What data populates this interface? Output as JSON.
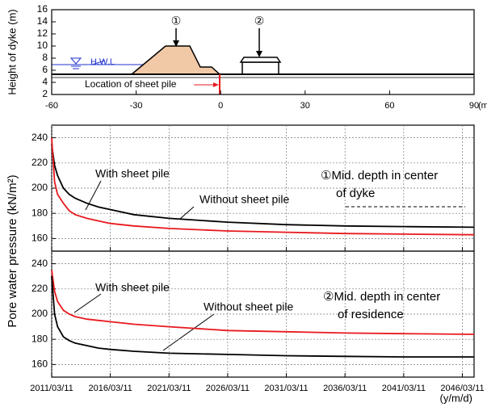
{
  "chart_data": [
    {
      "type": "profile",
      "ylabel": "Height of dyke (m)",
      "xunit": "(m",
      "xlim": [
        -60,
        90
      ],
      "xticks": [
        -60,
        -30,
        0,
        30,
        60,
        90
      ],
      "ylim": [
        2,
        16
      ],
      "yticks": [
        2,
        4,
        6,
        8,
        10,
        12,
        14,
        16
      ],
      "annotations": [
        "H.W.L",
        "①",
        "②",
        "Location of sheet pile"
      ]
    },
    {
      "type": "line",
      "ylabel": "Pore water pressure (kN/m²)",
      "xlim": [
        0,
        36
      ],
      "xticks": [
        0,
        5,
        10,
        15,
        20,
        25,
        30,
        35
      ],
      "ylim": [
        150,
        250
      ],
      "yticks": [
        160,
        180,
        200,
        220,
        240
      ],
      "grid": true,
      "x": [
        0,
        0.25,
        0.5,
        1,
        1.5,
        2,
        3,
        4,
        5,
        7,
        10,
        15,
        20,
        25,
        30,
        36
      ],
      "series": [
        {
          "name": "With sheet pile",
          "color": "#000000",
          "values": [
            235,
            218,
            210,
            200,
            195,
            192,
            188,
            185,
            183,
            179,
            176,
            173,
            171,
            170,
            169.5,
            169
          ]
        },
        {
          "name": "Without sheet pile",
          "color": "#e8191e",
          "values": [
            240,
            205,
            195,
            188,
            182,
            179,
            176,
            174,
            172,
            170,
            168,
            166,
            165,
            164,
            163.5,
            163
          ]
        }
      ],
      "annotations": [
        "①Mid. depth in center",
        "of dyke"
      ]
    },
    {
      "type": "line",
      "xlim": [
        0,
        36
      ],
      "xticks": [
        {
          "value": 0,
          "label": "2011/03/11"
        },
        {
          "value": 5,
          "label": "2016/03/11"
        },
        {
          "value": 10,
          "label": "2021/03/11"
        },
        {
          "value": 15,
          "label": "2026/03/11"
        },
        {
          "value": 20,
          "label": "2031/03/11"
        },
        {
          "value": 25,
          "label": "2036/03/11"
        },
        {
          "value": 30,
          "label": "2041/03/11"
        },
        {
          "value": 35,
          "label": "2046/03/11"
        }
      ],
      "xlabel": "(y/m/d)",
      "ylim": [
        150,
        250
      ],
      "yticks": [
        160,
        180,
        200,
        220,
        240
      ],
      "grid": true,
      "x": [
        0,
        0.25,
        0.5,
        1,
        1.5,
        2,
        3,
        4,
        5,
        7,
        10,
        15,
        20,
        25,
        30,
        36
      ],
      "series": [
        {
          "name": "With sheet pile",
          "color": "#e8191e",
          "values": [
            235,
            218,
            210,
            203,
            200,
            198,
            196,
            195,
            194,
            192,
            190,
            187,
            186,
            185,
            184.5,
            184
          ]
        },
        {
          "name": "Without sheet pile",
          "color": "#000000",
          "values": [
            230,
            200,
            190,
            182,
            179,
            177,
            175,
            173,
            172,
            170.5,
            169,
            168,
            167,
            166.5,
            166,
            166
          ]
        }
      ],
      "annotations": [
        "②Mid. depth in center",
        "of residence"
      ]
    }
  ]
}
